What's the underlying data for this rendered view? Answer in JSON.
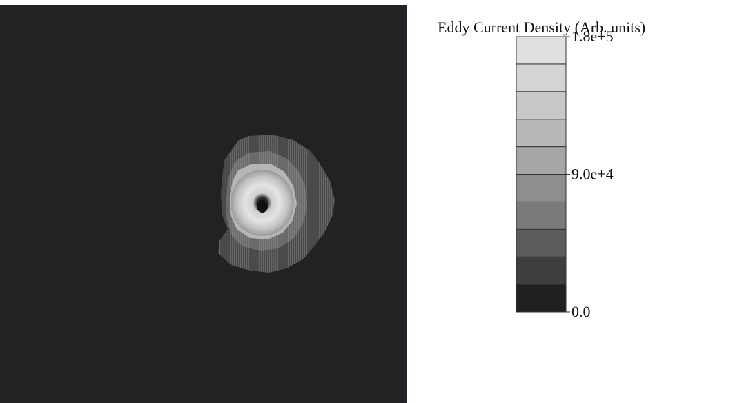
{
  "chart_data": {
    "type": "heatmap",
    "title": "",
    "colorbar": {
      "label": "Eddy Current Density (Arb. units)",
      "min": 0.0,
      "max": 180000,
      "levels": 10,
      "tick_values": [
        180000,
        90000,
        0
      ],
      "tick_labels": [
        "1.8e+5",
        "9.0e+4",
        "0.0"
      ],
      "level_colors": [
        "#202020",
        "#3e3e3e",
        "#5c5c5c",
        "#7a7a7a",
        "#8e8e8e",
        "#a6a6a6",
        "#b8b8b8",
        "#c8c8c8",
        "#d4d4d4",
        "#e0e0e0"
      ]
    },
    "field": {
      "description_units": "Arb. units",
      "background_value": 0.0,
      "peak_value_approx": 180000,
      "center_value_approx": 0.0
    },
    "grid": false
  },
  "colors": {
    "plot_background": "#222222",
    "plot_border": "#1c2040",
    "page_background": "#ffffff",
    "text": "#111111"
  }
}
